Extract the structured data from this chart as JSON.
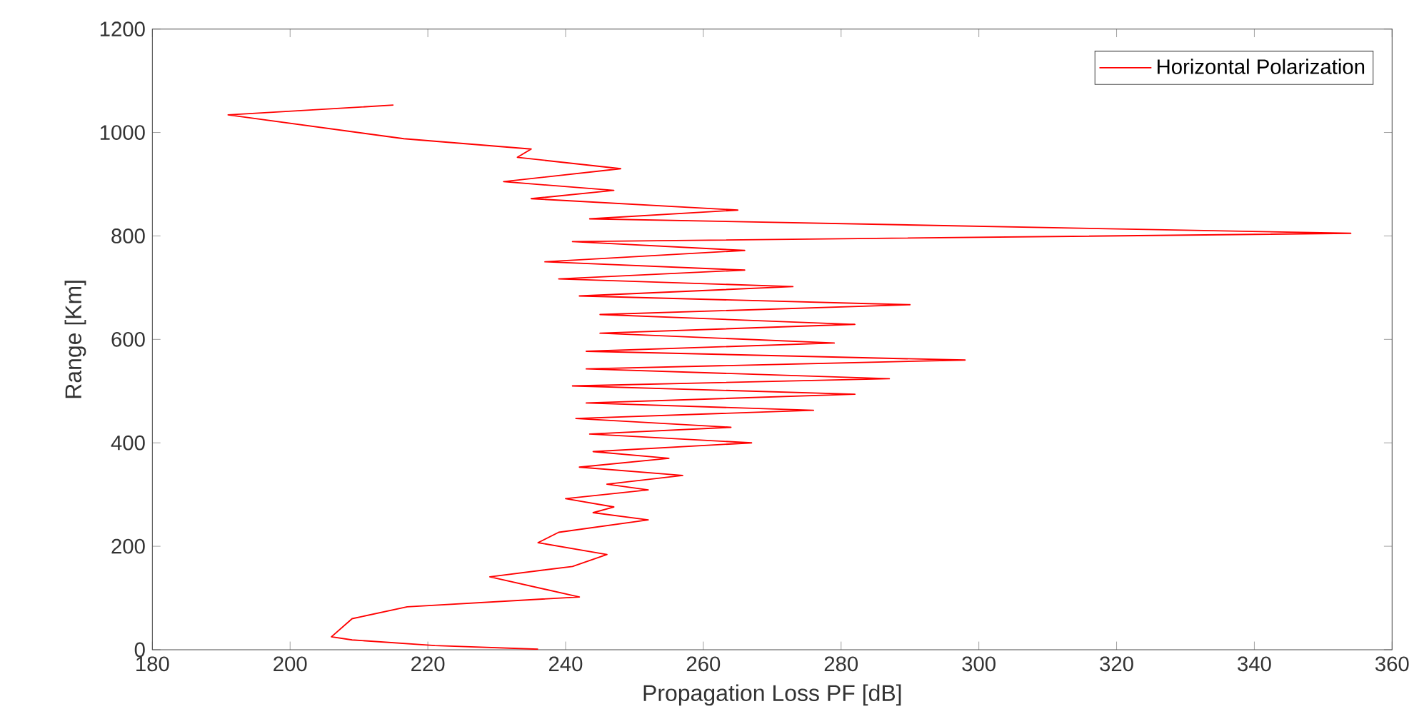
{
  "chart_data": {
    "type": "line",
    "xlabel": "Propagation Loss PF [dB]",
    "ylabel": "Range [Km]",
    "xlim": [
      180,
      360
    ],
    "ylim": [
      0,
      1200
    ],
    "xticks": [
      180,
      200,
      220,
      240,
      260,
      280,
      300,
      320,
      340,
      360
    ],
    "yticks": [
      0,
      200,
      400,
      600,
      800,
      1000,
      1200
    ],
    "grid": false,
    "legend": "top right",
    "marker": "none",
    "line_style": "solid",
    "series": [
      {
        "name": "Horizontal Polarization",
        "color": "#ff0000",
        "x": [
          215,
          191,
          216.5,
          235,
          233,
          248,
          231,
          247,
          235,
          265,
          243.5,
          354,
          241,
          266,
          237,
          266,
          239,
          273,
          242,
          290,
          245,
          282,
          245,
          279,
          243,
          298,
          243,
          287,
          241,
          282,
          243,
          276,
          241.5,
          264,
          243.5,
          267,
          244,
          255,
          242,
          257,
          246,
          252,
          240,
          247,
          244,
          252,
          239,
          236,
          246,
          241,
          229,
          242,
          217,
          209,
          206,
          209,
          221,
          236
        ],
        "values": [
          1053,
          1034,
          988,
          968,
          952,
          930,
          905,
          888,
          872,
          850,
          833,
          805,
          789,
          772,
          750,
          734,
          717,
          702,
          684,
          667,
          648,
          629,
          612,
          593,
          577,
          560,
          543,
          524,
          510,
          494,
          477,
          463,
          447,
          430,
          417,
          400,
          383,
          370,
          353,
          337,
          320,
          309,
          292,
          276,
          265,
          251,
          227,
          207,
          184,
          161,
          141,
          102,
          83,
          60,
          25,
          19,
          8,
          1
        ]
      }
    ]
  }
}
